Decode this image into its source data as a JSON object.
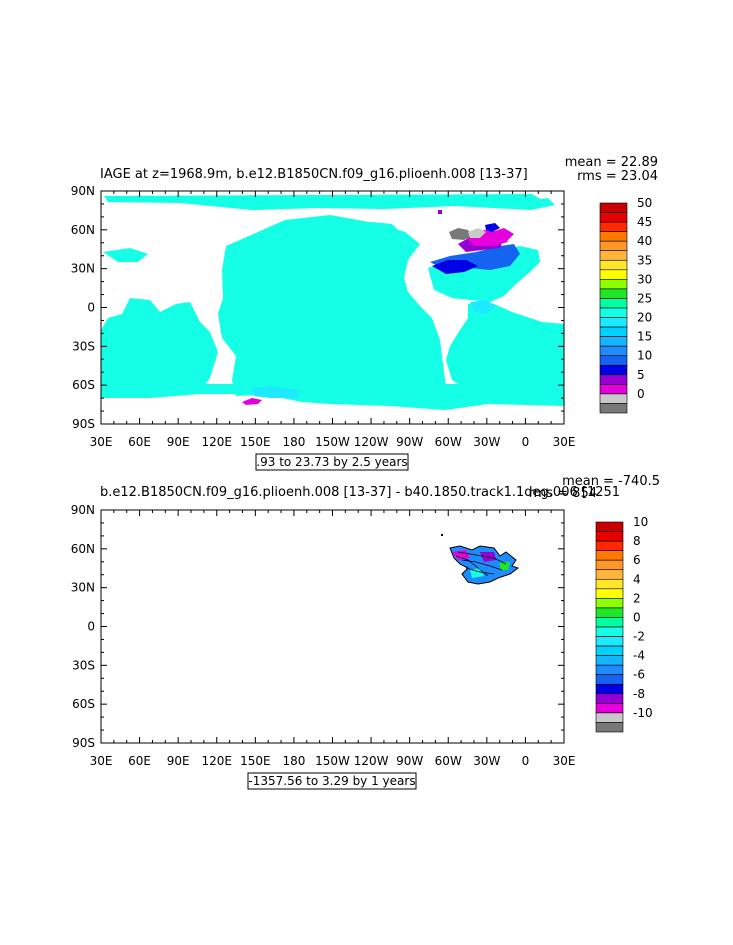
{
  "panels": [
    {
      "title": "IAGE at z=1968.9m, b.e12.B1850CN.f09_g16.plioenh.008 [13-37]",
      "mean_text": "mean = 22.89",
      "rms_text": "rms = 23.04",
      "contour_info": ".93 to 23.73 by 2.5 years",
      "colorbar_labels": [
        "50",
        "45",
        "40",
        "35",
        "30",
        "25",
        "20",
        "15",
        "10",
        "5",
        "0"
      ],
      "colorbar_colors": [
        "#c80000",
        "#e80000",
        "#ff2800",
        "#ff7800",
        "#ff9628",
        "#ffb43c",
        "#ffe628",
        "#ffff00",
        "#8cff00",
        "#1ee628",
        "#00ffa0",
        "#14ffe6",
        "#1eeaff",
        "#00d2ff",
        "#14b4ff",
        "#1e8cff",
        "#1464f0",
        "#0000e6",
        "#9600d2",
        "#e600dc",
        "#c8c8c8",
        "#787878"
      ]
    },
    {
      "title": "b.e12.B1850CN.f09_g16.plioenh.008 [13-37] - b40.1850.track1.1deg.006 [1251",
      "mean_text": "mean = -740.5",
      "rms_text": "rms = 854",
      "contour_info": "-1357.56 to 3.29 by 1 years",
      "colorbar_labels": [
        "10",
        "8",
        "6",
        "4",
        "2",
        "0",
        "-2",
        "-4",
        "-6",
        "-8",
        "-10"
      ],
      "colorbar_colors": [
        "#c80000",
        "#e80000",
        "#ff2800",
        "#ff7800",
        "#ff9628",
        "#ffb43c",
        "#ffe628",
        "#ffff00",
        "#8cff00",
        "#1ee628",
        "#00ffa0",
        "#14ffe6",
        "#1eeaff",
        "#00d2ff",
        "#14b4ff",
        "#1e8cff",
        "#1464f0",
        "#0000e6",
        "#9600d2",
        "#e600dc",
        "#c8c8c8",
        "#787878"
      ]
    }
  ],
  "axes": {
    "lon_ticks": [
      "30E",
      "60E",
      "90E",
      "120E",
      "150E",
      "180",
      "150W",
      "120W",
      "90W",
      "60W",
      "30W",
      "0",
      "30E"
    ],
    "lat_ticks": [
      "90N",
      "60N",
      "30N",
      "0",
      "30S",
      "60S",
      "90S"
    ]
  },
  "chart_data": [
    {
      "type": "heatmap",
      "title": "IAGE at z=1968.9m, b.e12.B1850CN.f09_g16.plioenh.008 [13-37]",
      "xlim": [
        30,
        390
      ],
      "ylim": [
        -90,
        90
      ],
      "contour_levels": [
        0,
        5,
        10,
        15,
        20,
        25,
        30,
        35,
        40,
        45,
        50
      ],
      "mean": 22.89,
      "rms": 23.04,
      "dominant_value": 20
    },
    {
      "type": "heatmap",
      "title": "b.e12.B1850CN.f09_g16.plioenh.008 [13-37] - b40.1850.track1.1deg.006 [1251",
      "xlim": [
        30,
        390
      ],
      "ylim": [
        -90,
        90
      ],
      "contour_levels": [
        -10,
        -8,
        -6,
        -4,
        -2,
        0,
        2,
        4,
        6,
        8,
        10
      ],
      "mean": -740.5,
      "rms": 854
    }
  ]
}
